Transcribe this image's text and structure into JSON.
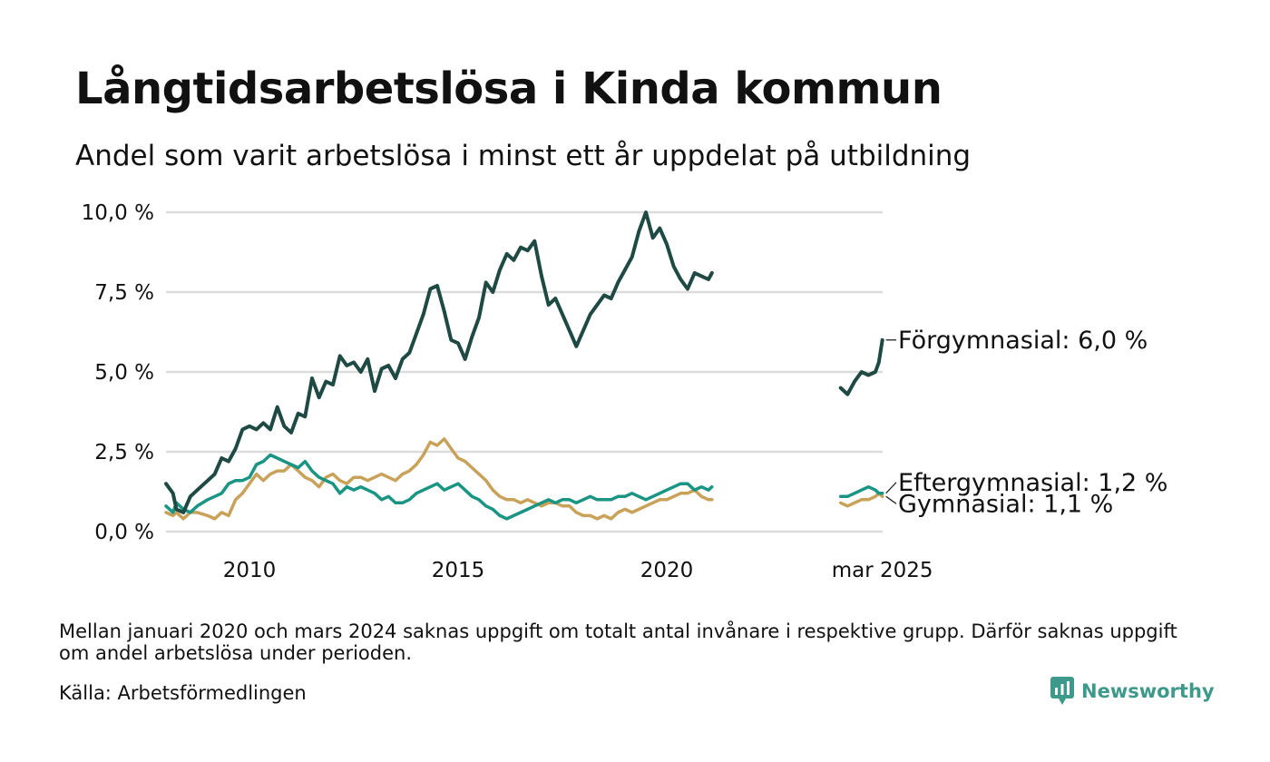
{
  "header": {
    "title": "Långtidsarbetslösa i Kinda kommun",
    "subtitle": "Andel som varit arbetslösa i minst ett år uppdelat på utbildning"
  },
  "footer": {
    "note": "Mellan januari 2020 och mars 2024 saknas uppgift om totalt antal invånare i respektive grupp. Därför saknas uppgift om andel arbetslösa under perioden.",
    "source": "Källa: Arbetsförmedlingen",
    "brand": "Newsworthy",
    "brand_icon": "newsworthy-logo-icon",
    "brand_color": "#3d9a8b"
  },
  "chart_data": {
    "type": "line",
    "x_tick_labels": [
      "2010",
      "2015",
      "2020",
      "mar 2025"
    ],
    "y_tick_labels": [
      "0,0 %",
      "2,5 %",
      "5,0 %",
      "7,5 %",
      "10,0 %"
    ],
    "ylim": [
      0,
      10
    ],
    "y_unit": "%",
    "grid": "horizontal",
    "series": [
      {
        "name": "Förgymnasial",
        "label": "Förgymnasial: 6,0 %",
        "color": "#1f4a44",
        "x": [
          "2008-01",
          "2008-03",
          "2008-04",
          "2008-06",
          "2008-08",
          "2008-10",
          "2009-01",
          "2009-03",
          "2009-05",
          "2009-07",
          "2009-09",
          "2009-11",
          "2010-01",
          "2010-03",
          "2010-05",
          "2010-07",
          "2010-09",
          "2010-11",
          "2011-01",
          "2011-03",
          "2011-05",
          "2011-07",
          "2011-09",
          "2011-11",
          "2012-01",
          "2012-03",
          "2012-05",
          "2012-07",
          "2012-09",
          "2012-11",
          "2013-01",
          "2013-03",
          "2013-05",
          "2013-07",
          "2013-09",
          "2013-11",
          "2014-01",
          "2014-03",
          "2014-05",
          "2014-07",
          "2014-09",
          "2014-11",
          "2015-01",
          "2015-03",
          "2015-05",
          "2015-07",
          "2015-09",
          "2015-11",
          "2016-01",
          "2016-03",
          "2016-05",
          "2016-07",
          "2016-09",
          "2016-11",
          "2017-01",
          "2017-03",
          "2017-05",
          "2017-07",
          "2017-09",
          "2017-11",
          "2018-01",
          "2018-03",
          "2018-05",
          "2018-07",
          "2018-09",
          "2018-11",
          "2019-01",
          "2019-03",
          "2019-05",
          "2019-07",
          "2019-09",
          "2019-11",
          "2020-01",
          "2020-03",
          "2020-05",
          "2020-07",
          "2020-09",
          "2020-11",
          "2021-01",
          "2021-02",
          "2024-03",
          "2024-05",
          "2024-07",
          "2024-09",
          "2024-11",
          "2025-01",
          "2025-02",
          "2025-03"
        ],
        "values": [
          1.5,
          1.2,
          0.7,
          0.6,
          1.1,
          1.3,
          1.6,
          1.8,
          2.3,
          2.2,
          2.6,
          3.2,
          3.3,
          3.2,
          3.4,
          3.2,
          3.9,
          3.3,
          3.1,
          3.7,
          3.6,
          4.8,
          4.2,
          4.7,
          4.6,
          5.5,
          5.2,
          5.3,
          5.0,
          5.4,
          4.4,
          5.1,
          5.2,
          4.8,
          5.4,
          5.6,
          6.2,
          6.8,
          7.6,
          7.7,
          6.9,
          6.0,
          5.9,
          5.4,
          6.1,
          6.7,
          7.8,
          7.5,
          8.2,
          8.7,
          8.5,
          8.9,
          8.8,
          9.1,
          8.0,
          7.1,
          7.3,
          6.8,
          6.3,
          5.8,
          6.3,
          6.8,
          7.1,
          7.4,
          7.3,
          7.8,
          8.2,
          8.6,
          9.4,
          10.0,
          9.2,
          9.5,
          9.0,
          8.3,
          7.9,
          7.6,
          8.1,
          8.0,
          7.9,
          8.1,
          4.5,
          4.3,
          4.7,
          5.0,
          4.9,
          5.0,
          5.3,
          6.0
        ]
      },
      {
        "name": "Eftergymnasial",
        "label": "Eftergymnasial: 1,2 %",
        "color": "#1a9483",
        "x": [
          "2008-01",
          "2008-03",
          "2008-04",
          "2008-06",
          "2008-08",
          "2008-10",
          "2009-01",
          "2009-03",
          "2009-05",
          "2009-07",
          "2009-09",
          "2009-11",
          "2010-01",
          "2010-03",
          "2010-05",
          "2010-07",
          "2010-09",
          "2010-11",
          "2011-01",
          "2011-03",
          "2011-05",
          "2011-07",
          "2011-09",
          "2011-11",
          "2012-01",
          "2012-03",
          "2012-05",
          "2012-07",
          "2012-09",
          "2012-11",
          "2013-01",
          "2013-03",
          "2013-05",
          "2013-07",
          "2013-09",
          "2013-11",
          "2014-01",
          "2014-03",
          "2014-05",
          "2014-07",
          "2014-09",
          "2014-11",
          "2015-01",
          "2015-03",
          "2015-05",
          "2015-07",
          "2015-09",
          "2015-11",
          "2016-01",
          "2016-03",
          "2016-05",
          "2016-07",
          "2016-09",
          "2016-11",
          "2017-01",
          "2017-03",
          "2017-05",
          "2017-07",
          "2017-09",
          "2017-11",
          "2018-01",
          "2018-03",
          "2018-05",
          "2018-07",
          "2018-09",
          "2018-11",
          "2019-01",
          "2019-03",
          "2019-05",
          "2019-07",
          "2019-09",
          "2019-11",
          "2020-01",
          "2020-03",
          "2020-05",
          "2020-07",
          "2020-09",
          "2020-11",
          "2021-01",
          "2021-02",
          "2024-03",
          "2024-05",
          "2024-07",
          "2024-09",
          "2024-11",
          "2025-01",
          "2025-02",
          "2025-03"
        ],
        "values": [
          0.8,
          0.6,
          0.9,
          0.7,
          0.6,
          0.8,
          1.0,
          1.1,
          1.2,
          1.5,
          1.6,
          1.6,
          1.7,
          2.1,
          2.2,
          2.4,
          2.3,
          2.2,
          2.1,
          2.0,
          2.2,
          1.9,
          1.7,
          1.6,
          1.5,
          1.2,
          1.4,
          1.3,
          1.4,
          1.3,
          1.2,
          1.0,
          1.1,
          0.9,
          0.9,
          1.0,
          1.2,
          1.3,
          1.4,
          1.5,
          1.3,
          1.4,
          1.5,
          1.3,
          1.1,
          1.0,
          0.8,
          0.7,
          0.5,
          0.4,
          0.5,
          0.6,
          0.7,
          0.8,
          0.9,
          1.0,
          0.9,
          1.0,
          1.0,
          0.9,
          1.0,
          1.1,
          1.0,
          1.0,
          1.0,
          1.1,
          1.1,
          1.2,
          1.1,
          1.0,
          1.1,
          1.2,
          1.3,
          1.4,
          1.5,
          1.5,
          1.3,
          1.4,
          1.3,
          1.4,
          1.1,
          1.1,
          1.2,
          1.3,
          1.4,
          1.3,
          1.2,
          1.2
        ]
      },
      {
        "name": "Gymnasial",
        "label": "Gymnasial: 1,1 %",
        "color": "#c9a25a",
        "x": [
          "2008-01",
          "2008-03",
          "2008-04",
          "2008-06",
          "2008-08",
          "2008-10",
          "2009-01",
          "2009-03",
          "2009-05",
          "2009-07",
          "2009-09",
          "2009-11",
          "2010-01",
          "2010-03",
          "2010-05",
          "2010-07",
          "2010-09",
          "2010-11",
          "2011-01",
          "2011-03",
          "2011-05",
          "2011-07",
          "2011-09",
          "2011-11",
          "2012-01",
          "2012-03",
          "2012-05",
          "2012-07",
          "2012-09",
          "2012-11",
          "2013-01",
          "2013-03",
          "2013-05",
          "2013-07",
          "2013-09",
          "2013-11",
          "2014-01",
          "2014-03",
          "2014-05",
          "2014-07",
          "2014-09",
          "2014-11",
          "2015-01",
          "2015-03",
          "2015-05",
          "2015-07",
          "2015-09",
          "2015-11",
          "2016-01",
          "2016-03",
          "2016-05",
          "2016-07",
          "2016-09",
          "2016-11",
          "2017-01",
          "2017-03",
          "2017-05",
          "2017-07",
          "2017-09",
          "2017-11",
          "2018-01",
          "2018-03",
          "2018-05",
          "2018-07",
          "2018-09",
          "2018-11",
          "2019-01",
          "2019-03",
          "2019-05",
          "2019-07",
          "2019-09",
          "2019-11",
          "2020-01",
          "2020-03",
          "2020-05",
          "2020-07",
          "2020-09",
          "2020-11",
          "2021-01",
          "2021-02",
          "2024-03",
          "2024-05",
          "2024-07",
          "2024-09",
          "2024-11",
          "2025-01",
          "2025-02",
          "2025-03"
        ],
        "values": [
          0.6,
          0.5,
          0.6,
          0.4,
          0.6,
          0.6,
          0.5,
          0.4,
          0.6,
          0.5,
          1.0,
          1.2,
          1.5,
          1.8,
          1.6,
          1.8,
          1.9,
          1.9,
          2.1,
          1.9,
          1.7,
          1.6,
          1.4,
          1.7,
          1.8,
          1.6,
          1.5,
          1.7,
          1.7,
          1.6,
          1.7,
          1.8,
          1.7,
          1.6,
          1.8,
          1.9,
          2.1,
          2.4,
          2.8,
          2.7,
          2.9,
          2.6,
          2.3,
          2.2,
          2.0,
          1.8,
          1.6,
          1.3,
          1.1,
          1.0,
          1.0,
          0.9,
          1.0,
          0.9,
          0.8,
          0.9,
          0.9,
          0.8,
          0.8,
          0.6,
          0.5,
          0.5,
          0.4,
          0.5,
          0.4,
          0.6,
          0.7,
          0.6,
          0.7,
          0.8,
          0.9,
          1.0,
          1.0,
          1.1,
          1.2,
          1.2,
          1.3,
          1.1,
          1.0,
          1.0,
          0.9,
          0.8,
          0.9,
          1.0,
          1.0,
          1.1,
          1.2,
          1.1
        ]
      }
    ]
  }
}
